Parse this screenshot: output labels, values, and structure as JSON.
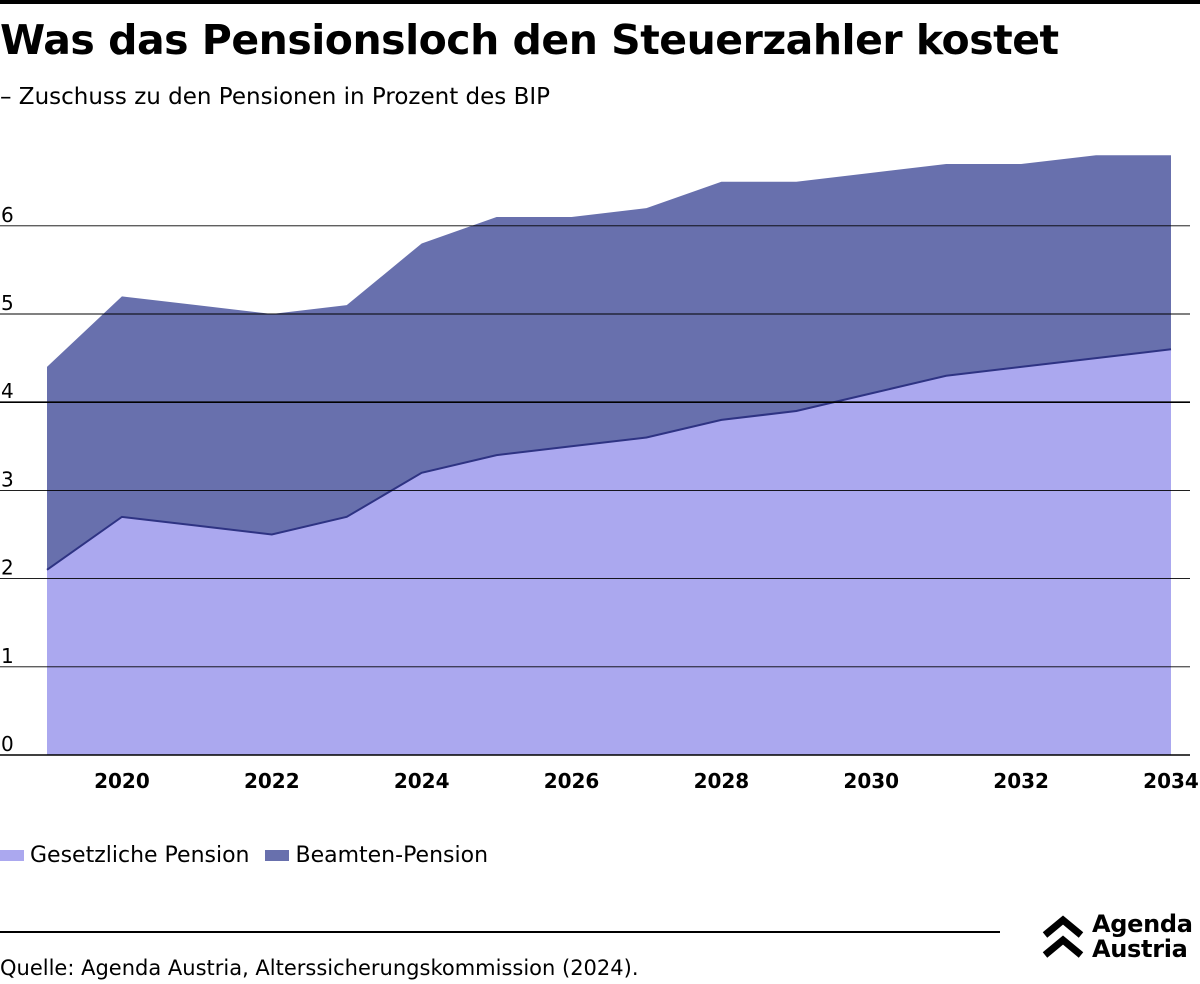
{
  "header": {
    "title": "Was das Pensionsloch den Steuerzahler kostet",
    "subtitle": "– Zuschuss zu den Pensionen in Prozent des BIP"
  },
  "legend": {
    "items": [
      {
        "label": "Gesetzliche Pension",
        "color": "#ABA8EF"
      },
      {
        "label": "Beamten-Pension",
        "color": "#6870AD"
      }
    ]
  },
  "footer": {
    "source": "Quelle: Agenda Austria, Alterssicherungskommission (2024).",
    "logo_line1": "Agenda",
    "logo_line2": "Austria"
  },
  "chart_data": {
    "type": "area",
    "stacked": true,
    "title": "Was das Pensionsloch den Steuerzahler kostet",
    "subtitle": "– Zuschuss zu den Pensionen in Prozent des BIP",
    "xlabel": "",
    "ylabel": "",
    "x": [
      2019,
      2020,
      2021,
      2022,
      2023,
      2024,
      2025,
      2026,
      2027,
      2028,
      2029,
      2030,
      2031,
      2032,
      2033,
      2034
    ],
    "x_ticks": [
      "2020",
      "2022",
      "2024",
      "2026",
      "2028",
      "2030",
      "2032",
      "2034"
    ],
    "y_ticks": [
      "0",
      "1",
      "2",
      "3",
      "4",
      "5",
      "6"
    ],
    "ylim": [
      0,
      7
    ],
    "grid": true,
    "legend_position": "bottom-left",
    "series": [
      {
        "name": "Gesetzliche Pension",
        "color": "#ABA8EF",
        "values": [
          2.1,
          2.7,
          2.6,
          2.5,
          2.7,
          3.2,
          3.4,
          3.5,
          3.6,
          3.8,
          3.9,
          4.1,
          4.3,
          4.4,
          4.5,
          4.6
        ]
      },
      {
        "name": "Beamten-Pension",
        "color": "#6870AD",
        "values": [
          2.3,
          2.5,
          2.5,
          2.5,
          2.4,
          2.6,
          2.7,
          2.6,
          2.6,
          2.7,
          2.6,
          2.5,
          2.4,
          2.3,
          2.3,
          2.2
        ]
      }
    ]
  }
}
